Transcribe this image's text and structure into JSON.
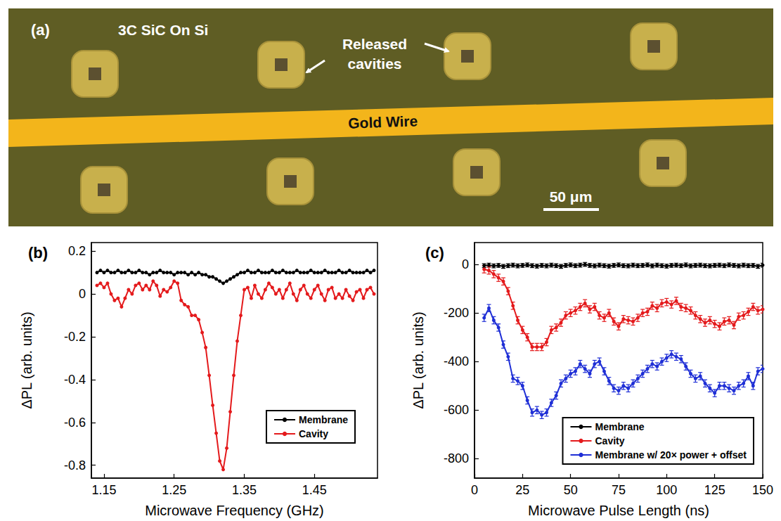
{
  "panel_a": {
    "letter": "(a)",
    "substrate": "3C SiC On Si",
    "cavities": "Released cavities",
    "wire": "Gold Wire",
    "scale_bar": "50 μm"
  },
  "chart_data": [
    {
      "type": "line",
      "panel_label": "(b)",
      "x_label": "Microwave Frequency (GHz)",
      "y_label": "ΔPL (arb. units)",
      "x": [
        1.14,
        1.145,
        1.15,
        1.155,
        1.16,
        1.165,
        1.17,
        1.175,
        1.18,
        1.185,
        1.19,
        1.195,
        1.2,
        1.205,
        1.21,
        1.215,
        1.22,
        1.225,
        1.23,
        1.235,
        1.24,
        1.245,
        1.25,
        1.255,
        1.26,
        1.265,
        1.27,
        1.275,
        1.28,
        1.285,
        1.29,
        1.295,
        1.3,
        1.305,
        1.31,
        1.315,
        1.32,
        1.325,
        1.33,
        1.335,
        1.34,
        1.345,
        1.35,
        1.355,
        1.36,
        1.365,
        1.37,
        1.375,
        1.38,
        1.385,
        1.39,
        1.395,
        1.4,
        1.405,
        1.41,
        1.415,
        1.42,
        1.425,
        1.43,
        1.435,
        1.44,
        1.445,
        1.45,
        1.455,
        1.46,
        1.465,
        1.47,
        1.475,
        1.48,
        1.485,
        1.49,
        1.495,
        1.5,
        1.505,
        1.51,
        1.515,
        1.52,
        1.525,
        1.53,
        1.535
      ],
      "series": [
        {
          "name": "Membrane",
          "color": "#000000",
          "marker": "circle",
          "line_style": "solid",
          "values": [
            0.1,
            0.11,
            0.1,
            0.11,
            0.1,
            0.1,
            0.11,
            0.1,
            0.1,
            0.11,
            0.1,
            0.1,
            0.11,
            0.1,
            0.1,
            0.09,
            0.1,
            0.1,
            0.11,
            0.1,
            0.1,
            0.1,
            0.09,
            0.1,
            0.1,
            0.1,
            0.09,
            0.1,
            0.09,
            0.1,
            0.09,
            0.09,
            0.08,
            0.08,
            0.07,
            0.06,
            0.05,
            0.06,
            0.07,
            0.08,
            0.09,
            0.1,
            0.1,
            0.11,
            0.1,
            0.1,
            0.11,
            0.1,
            0.1,
            0.1,
            0.11,
            0.1,
            0.1,
            0.11,
            0.1,
            0.1,
            0.1,
            0.11,
            0.1,
            0.1,
            0.1,
            0.11,
            0.1,
            0.1,
            0.1,
            0.11,
            0.1,
            0.1,
            0.1,
            0.11,
            0.1,
            0.1,
            0.11,
            0.1,
            0.1,
            0.1,
            0.1,
            0.11,
            0.1,
            0.11
          ]
        },
        {
          "name": "Cavity",
          "color": "#e41a1c",
          "marker": "circle",
          "line_style": "solid",
          "values": [
            0.04,
            0.05,
            0.03,
            0.05,
            0,
            -0.03,
            -0.02,
            -0.06,
            -0.02,
            0.02,
            0,
            0.04,
            0.05,
            0.02,
            0.04,
            0.02,
            0.06,
            0.04,
            -0.01,
            0.02,
            0.01,
            0.03,
            0.06,
            0.05,
            -0.03,
            -0.05,
            -0.06,
            -0.1,
            -0.1,
            -0.12,
            -0.18,
            -0.25,
            -0.38,
            -0.52,
            -0.65,
            -0.78,
            -0.82,
            -0.72,
            -0.55,
            -0.38,
            -0.22,
            -0.1,
            0.02,
            0.03,
            -0.02,
            0.04,
            0,
            -0.02,
            0.02,
            0.05,
            0.03,
            0,
            0.02,
            -0.02,
            0.02,
            0.05,
            0,
            -0.03,
            0.02,
            0.04,
            0,
            -0.02,
            0.02,
            0.04,
            0,
            -0.03,
            0.02,
            0.03,
            -0.02,
            0,
            -0.02,
            0.02,
            -0.01,
            -0.03,
            0.01,
            0.02,
            -0.02,
            0.02,
            0.03,
            0
          ]
        }
      ],
      "xlim": [
        1.132,
        1.54
      ],
      "xticks": [
        1.15,
        1.25,
        1.35,
        1.45
      ],
      "ylim": [
        -0.86,
        0.24
      ],
      "yticks": [
        -0.8,
        -0.6,
        -0.4,
        -0.2,
        0,
        0.2
      ],
      "grid": false,
      "legend": "lower right"
    },
    {
      "type": "line",
      "panel_label": "(c)",
      "x_label": "Microwave Pulse Length (ns)",
      "y_label": "ΔPL (arb. units)",
      "x": [
        5,
        7.5,
        10,
        12.5,
        15,
        17.5,
        20,
        22.5,
        25,
        27.5,
        30,
        32.5,
        35,
        37.5,
        40,
        42.5,
        45,
        47.5,
        50,
        52.5,
        55,
        57.5,
        60,
        62.5,
        65,
        67.5,
        70,
        72.5,
        75,
        77.5,
        80,
        82.5,
        85,
        87.5,
        90,
        92.5,
        95,
        97.5,
        100,
        102.5,
        105,
        107.5,
        110,
        112.5,
        115,
        117.5,
        120,
        122.5,
        125,
        127.5,
        130,
        132.5,
        135,
        137.5,
        140,
        142.5,
        145,
        147.5,
        150
      ],
      "series": [
        {
          "name": "Membrane",
          "color": "#000000",
          "marker": "circle",
          "line_style": "solid",
          "error": 8,
          "values": [
            -5,
            -3,
            -6,
            -4,
            -8,
            -5,
            -3,
            -6,
            -4,
            -2,
            -5,
            -7,
            -4,
            -6,
            -3,
            -5,
            -8,
            -4,
            -2,
            -5,
            -3,
            0,
            -4,
            -6,
            -3,
            -5,
            -7,
            -4,
            -2,
            -5,
            -6,
            -3,
            -5,
            -4,
            -2,
            -6,
            -3,
            -5,
            -7,
            -4,
            -3,
            -5,
            -2,
            -6,
            -4,
            -3,
            -5,
            -6,
            -4,
            -3,
            -5,
            -2,
            -4,
            -6,
            -3,
            -5,
            -4,
            -8,
            -3
          ]
        },
        {
          "name": "Cavity",
          "color": "#e41a1c",
          "marker": "circle",
          "line_style": "solid",
          "error": 15,
          "values": [
            -20,
            -25,
            -40,
            -55,
            -70,
            -110,
            -170,
            -230,
            -270,
            -300,
            -340,
            -340,
            -340,
            -320,
            -270,
            -260,
            -240,
            -210,
            -200,
            -190,
            -175,
            -160,
            -185,
            -175,
            -210,
            -220,
            -200,
            -235,
            -255,
            -225,
            -230,
            -235,
            -220,
            -200,
            -195,
            -170,
            -180,
            -160,
            -155,
            -165,
            -150,
            -175,
            -180,
            -190,
            -210,
            -225,
            -240,
            -230,
            -245,
            -255,
            -235,
            -230,
            -250,
            -215,
            -210,
            -195,
            -175,
            -190,
            -185
          ]
        },
        {
          "name": "Membrane w/ 20× power + offset",
          "color": "#1f2fd6",
          "marker": "circle",
          "line_style": "solid",
          "error": 15,
          "values": [
            -220,
            -180,
            -230,
            -260,
            -330,
            -380,
            -470,
            -480,
            -500,
            -560,
            -610,
            -600,
            -620,
            -610,
            -570,
            -540,
            -490,
            -470,
            -450,
            -440,
            -410,
            -430,
            -450,
            -410,
            -400,
            -440,
            -480,
            -510,
            -520,
            -500,
            -510,
            -490,
            -470,
            -450,
            -430,
            -410,
            -420,
            -400,
            -385,
            -370,
            -380,
            -390,
            -420,
            -450,
            -470,
            -460,
            -490,
            -510,
            -530,
            -500,
            -500,
            -510,
            -520,
            -500,
            -490,
            -460,
            -500,
            -440,
            -430
          ]
        }
      ],
      "xlim": [
        0,
        150
      ],
      "xticks": [
        0,
        25,
        50,
        75,
        100,
        125,
        150
      ],
      "ylim": [
        -880,
        90
      ],
      "yticks": [
        -800,
        -600,
        -400,
        -200,
        0
      ],
      "grid": false,
      "legend": "lower right"
    }
  ]
}
